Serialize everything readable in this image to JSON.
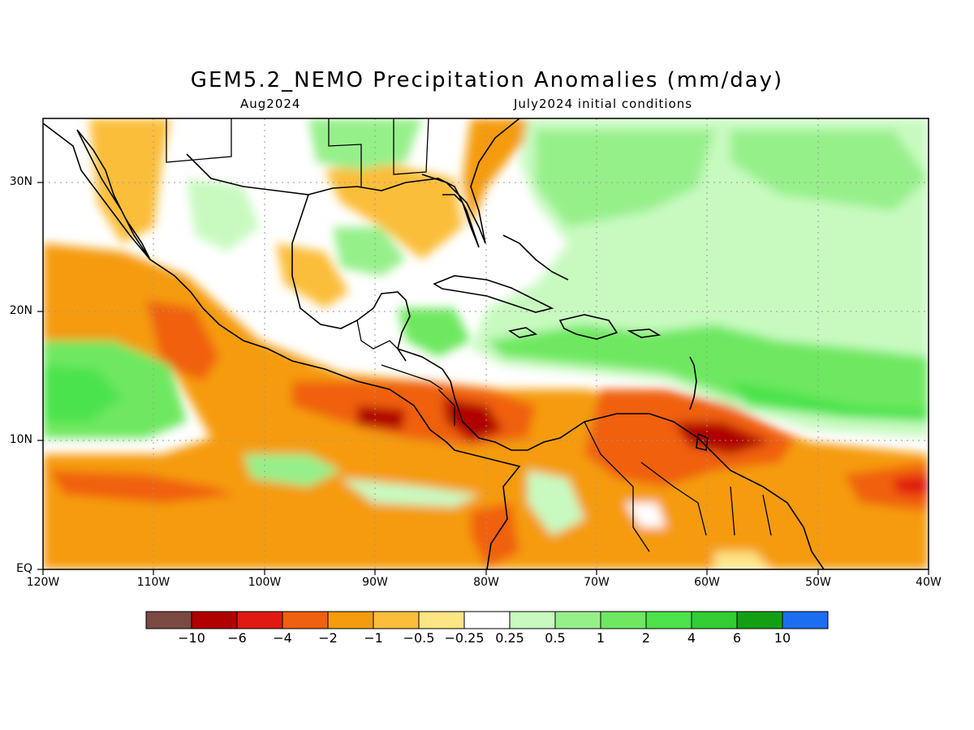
{
  "title": "GEM5.2_NEMO Precipitation Anomalies (mm/day)",
  "subtitle_left": "Aug2024",
  "subtitle_right": "July2024 initial conditions",
  "lat_labels": [
    "30N",
    "20N",
    "10N",
    "EQ"
  ],
  "lon_labels": [
    "120W",
    "110W",
    "100W",
    "90W",
    "80W",
    "70W",
    "60W",
    "50W",
    "40W"
  ],
  "colorbar": {
    "labels": [
      "-10",
      "-6",
      "-4",
      "-2",
      "-1",
      "-0.5",
      "-0.25",
      "0.25",
      "0.5",
      "1",
      "2",
      "4",
      "6",
      "10"
    ],
    "colors": [
      "#7a4a42",
      "#b00000",
      "#e01a10",
      "#f06010",
      "#f59b0f",
      "#fbbe3a",
      "#fde584",
      "#ffffff",
      "#c8fac0",
      "#96f08a",
      "#6ee860",
      "#4ce34b",
      "#32cd32",
      "#12a012",
      "#1c6ef0"
    ]
  },
  "palette": {
    "dry_strong": "#b00000",
    "dry": "#f06010",
    "dry_light": "#f59b0f",
    "dry_faint": "#fde584",
    "wet_faint": "#c8fac0",
    "wet": "#6ee860",
    "wet_strong": "#32cd32"
  }
}
